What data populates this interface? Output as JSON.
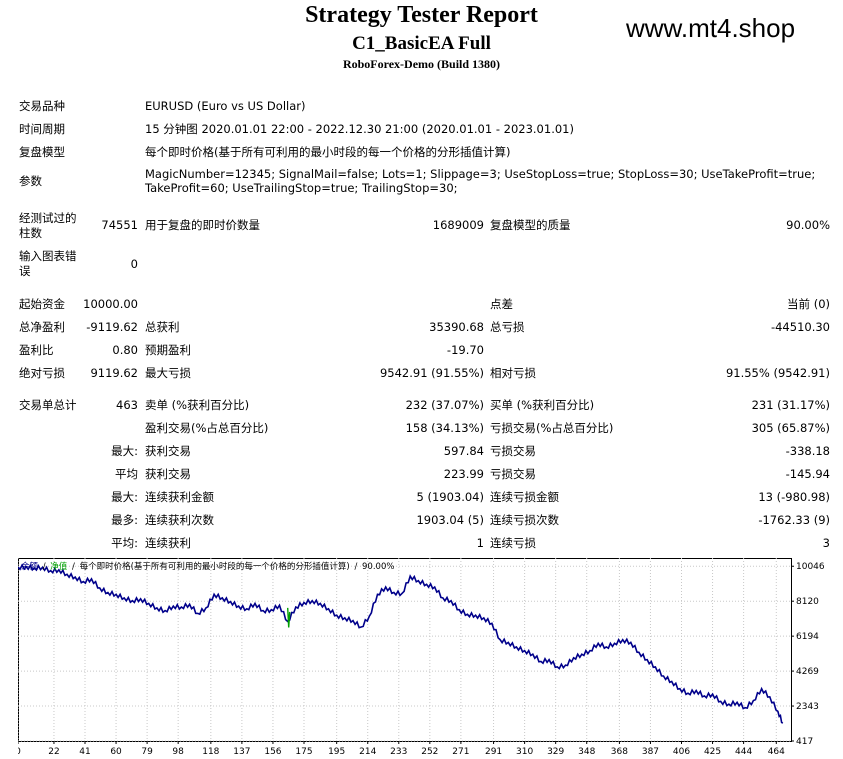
{
  "report": {
    "title": "Strategy Tester Report",
    "expert": "C1_BasicEA Full",
    "server": "RoboForex-Demo (Build 1380)",
    "watermark": "www.mt4.shop"
  },
  "settings": {
    "symbol_label": "交易品种",
    "symbol_value": "EURUSD (Euro vs US Dollar)",
    "period_label": "时间周期",
    "period_value": "15 分钟图 2020.01.01 22:00 - 2022.12.30 21:00 (2020.01.01 - 2023.01.01)",
    "model_label": "复盘模型",
    "model_value": "每个即时价格(基于所有可利用的最小时段的每一个价格的分形插值计算)",
    "params_label": "参数",
    "params_line1": "MagicNumber=12345; SignalMail=false; Lots=1; Slippage=3; UseStopLoss=true; StopLoss=30; UseTakeProfit=true;",
    "params_line2": "TakeProfit=60; UseTrailingStop=true; TrailingStop=30;"
  },
  "tests": {
    "bars_label_1": "经测试过的",
    "bars_label_2": "柱数",
    "bars_value": "74551",
    "ticks_label": "用于复盘的即时价数量",
    "ticks_value": "1689009",
    "quality_label": "复盘模型的质量",
    "quality_value": "90.00%",
    "errors_label_1": "输入图表错",
    "errors_label_2": "误",
    "errors_value": "0"
  },
  "results": {
    "deposit_label": "起始资金",
    "deposit_value": "10000.00",
    "spread_label": "点差",
    "spread_value": "当前 (0)",
    "netprofit_label": "总净盈利",
    "netprofit_value": "-9119.62",
    "grossprofit_label": "总获利",
    "grossprofit_value": "35390.68",
    "grossloss_label": "总亏损",
    "grossloss_value": "-44510.30",
    "pf_label": "盈利比",
    "pf_value": "0.80",
    "expected_label": "预期盈利",
    "expected_value": "-19.70",
    "absdd_label": "绝对亏损",
    "absdd_value": "9119.62",
    "maxdd_label": "最大亏损",
    "maxdd_value": "9542.91 (91.55%)",
    "reldd_label": "相对亏损",
    "reldd_value": "91.55% (9542.91)",
    "trades_label": "交易单总计",
    "trades_value": "463",
    "short_label": "卖单 (%获利百分比)",
    "short_value": "232 (37.07%)",
    "long_label": "买单 (%获利百分比)",
    "long_value": "231 (31.17%)",
    "profittrades_label": "盈利交易(%占总百分比)",
    "profittrades_value": "158 (34.13%)",
    "losstrades_label": "亏损交易(%占总百分比)",
    "losstrades_value": "305 (65.87%)",
    "max_label": "最大:",
    "largest_profit_label": "获利交易",
    "largest_profit_value": "597.84",
    "largest_loss_label": "亏损交易",
    "largest_loss_value": "-338.18",
    "avg_label": "平均",
    "avg_profit_label": "获利交易",
    "avg_profit_value": "223.99",
    "avg_loss_label": "亏损交易",
    "avg_loss_value": "-145.94",
    "max2_label": "最大:",
    "consec_wins_money_label": "连续获利金额",
    "consec_wins_money_value": "5 (1903.04)",
    "consec_loss_money_label": "连续亏损金额",
    "consec_loss_money_value": "13 (-980.98)",
    "most_label": "最多:",
    "consec_profit_count_label": "连续获利次数",
    "consec_profit_count_value": "1903.04 (5)",
    "consec_loss_count_label": "连续亏损次数",
    "consec_loss_count_value": "-1762.33 (9)",
    "avg2_label": "平均:",
    "avg_consec_wins_label": "连续获利",
    "avg_consec_wins_value": "1",
    "avg_consec_loss_label": "连续亏损",
    "avg_consec_loss_value": "3"
  },
  "chart_data": {
    "type": "line",
    "title": "",
    "legend": {
      "balance": "余额",
      "sep1": "/",
      "equity": "净值",
      "sep2": "/",
      "model": "每个即时价格(基于所有可利用的最小时段的每一个价格的分形插值计算)",
      "sep3": "/",
      "quality": "90.00%"
    },
    "colors": {
      "balance": "#00008b",
      "equity": "#00a000"
    },
    "xlim": [
      0,
      473
    ],
    "ylim": [
      417,
      10500
    ],
    "x_ticks": [
      "0",
      "22",
      "41",
      "60",
      "79",
      "98",
      "118",
      "137",
      "156",
      "175",
      "195",
      "214",
      "233",
      "252",
      "271",
      "291",
      "310",
      "329",
      "348",
      "368",
      "387",
      "406",
      "425",
      "444",
      "464"
    ],
    "y_ticks": [
      "10046",
      "8120",
      "6194",
      "4269",
      "2343",
      "417"
    ],
    "series": [
      {
        "key": "balance",
        "x": [
          0,
          5,
          10,
          15,
          20,
          25,
          30,
          35,
          40,
          45,
          50,
          55,
          60,
          65,
          70,
          75,
          80,
          85,
          90,
          95,
          100,
          105,
          110,
          115,
          120,
          125,
          130,
          135,
          140,
          145,
          150,
          155,
          160,
          165,
          170,
          175,
          180,
          185,
          190,
          195,
          200,
          205,
          210,
          215,
          220,
          225,
          230,
          235,
          240,
          245,
          250,
          255,
          260,
          265,
          270,
          275,
          280,
          285,
          290,
          295,
          300,
          305,
          310,
          315,
          320,
          325,
          330,
          335,
          340,
          345,
          350,
          355,
          360,
          365,
          370,
          375,
          380,
          385,
          390,
          395,
          400,
          405,
          410,
          415,
          420,
          425,
          430,
          435,
          440,
          445,
          450,
          455,
          460,
          465,
          468
        ],
        "y": [
          10000,
          10020,
          9950,
          9990,
          9800,
          9850,
          9600,
          9450,
          9200,
          9350,
          8850,
          8600,
          8500,
          8300,
          8150,
          8250,
          8000,
          7750,
          7600,
          7850,
          7800,
          7950,
          7450,
          7750,
          8500,
          8300,
          8100,
          7850,
          7700,
          8000,
          7600,
          7650,
          7900,
          7000,
          7800,
          8050,
          8150,
          8000,
          7700,
          7350,
          7200,
          7050,
          6700,
          7300,
          8500,
          8900,
          8600,
          8550,
          9500,
          9250,
          9050,
          8900,
          8300,
          8150,
          7650,
          7400,
          7350,
          7200,
          6900,
          6000,
          5850,
          5600,
          5400,
          5200,
          4800,
          4900,
          4500,
          4600,
          5000,
          5200,
          5400,
          5800,
          5600,
          5800,
          6000,
          5850,
          5300,
          4900,
          4500,
          4000,
          3700,
          3300,
          3050,
          3200,
          2900,
          3000,
          2600,
          2450,
          2550,
          2250,
          2650,
          3300,
          2850,
          2050,
          1400
        ]
      }
    ]
  }
}
